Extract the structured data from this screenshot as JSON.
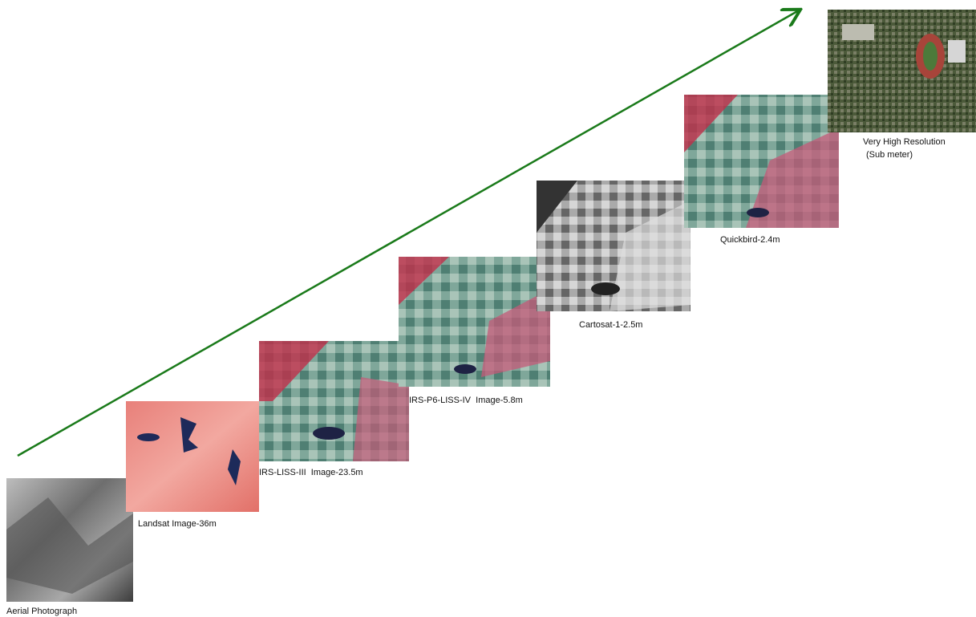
{
  "images": [
    {
      "label": "Aerial Photograph"
    },
    {
      "label": "Landsat Image-36m"
    },
    {
      "label": "IRS-LISS-III  Image-23.5m"
    },
    {
      "label": "IRS-P6-LISS-IV  Image-5.8m"
    },
    {
      "label": "Cartosat-1-2.5m"
    },
    {
      "label": "Quickbird-2.4m"
    },
    {
      "label_lines": [
        "Very High Resolution",
        "(Sub meter)"
      ]
    }
  ]
}
